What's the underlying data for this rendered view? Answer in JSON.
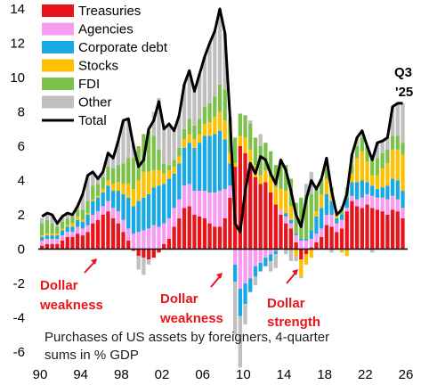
{
  "chart_data": {
    "type": "bar",
    "subtype": "stacked bar with line overlay",
    "unit": "% GDP",
    "x": {
      "start_year": 1990,
      "end_year": 2026,
      "tick_labels": [
        "90",
        "94",
        "98",
        "02",
        "06",
        "10",
        "14",
        "18",
        "22",
        "26"
      ]
    },
    "ylim": [
      -6,
      14
    ],
    "y_ticks": [
      "14",
      "12",
      "10",
      "8",
      "6",
      "4",
      "2",
      "0",
      "-2",
      "-4",
      "-6"
    ],
    "grid": false,
    "legend_position": "top-left",
    "series": [
      {
        "name": "Treasuries",
        "color": "#e8141b"
      },
      {
        "name": "Agencies",
        "color": "#f79cf0"
      },
      {
        "name": "Corporate debt",
        "color": "#17a9e3"
      },
      {
        "name": "Stocks",
        "color": "#ffc000"
      },
      {
        "name": "FDI",
        "color": "#7cc24a"
      },
      {
        "name": "Other",
        "color": "#bfbfbf"
      }
    ],
    "line_series": {
      "name": "Total",
      "color": "#000000",
      "points": [
        [
          1990.0,
          1.9
        ],
        [
          1990.5,
          2.1
        ],
        [
          1991.0,
          2.0
        ],
        [
          1991.5,
          1.5
        ],
        [
          1992.0,
          1.9
        ],
        [
          1992.5,
          2.1
        ],
        [
          1993.0,
          2.0
        ],
        [
          1993.5,
          2.5
        ],
        [
          1994.0,
          3.2
        ],
        [
          1994.5,
          4.3
        ],
        [
          1995.0,
          4.5
        ],
        [
          1995.5,
          4.1
        ],
        [
          1996.0,
          4.5
        ],
        [
          1996.5,
          5.6
        ],
        [
          1997.0,
          5.3
        ],
        [
          1997.5,
          6.3
        ],
        [
          1998.0,
          7.5
        ],
        [
          1998.5,
          7.6
        ],
        [
          1999.0,
          6.0
        ],
        [
          1999.5,
          4.8
        ],
        [
          2000.0,
          5.2
        ],
        [
          2000.5,
          7.0
        ],
        [
          2001.0,
          7.5
        ],
        [
          2001.5,
          8.6
        ],
        [
          2002.0,
          7.0
        ],
        [
          2002.5,
          7.3
        ],
        [
          2003.0,
          6.9
        ],
        [
          2003.5,
          7.8
        ],
        [
          2004.0,
          9.6
        ],
        [
          2004.5,
          10.4
        ],
        [
          2005.0,
          9.2
        ],
        [
          2005.5,
          10.2
        ],
        [
          2006.0,
          11.2
        ],
        [
          2006.5,
          12.0
        ],
        [
          2007.0,
          12.7
        ],
        [
          2007.5,
          14.0
        ],
        [
          2008.0,
          12.6
        ],
        [
          2008.5,
          7.7
        ],
        [
          2009.0,
          1.5
        ],
        [
          2009.5,
          1.0
        ],
        [
          2010.0,
          3.4
        ],
        [
          2010.5,
          5.0
        ],
        [
          2011.0,
          4.4
        ],
        [
          2011.5,
          5.4
        ],
        [
          2012.0,
          5.2
        ],
        [
          2012.5,
          4.4
        ],
        [
          2013.0,
          3.8
        ],
        [
          2013.5,
          5.2
        ],
        [
          2014.0,
          4.6
        ],
        [
          2014.5,
          3.4
        ],
        [
          2015.0,
          2.0
        ],
        [
          2015.5,
          1.3
        ],
        [
          2016.0,
          2.9
        ],
        [
          2016.5,
          4.0
        ],
        [
          2017.0,
          3.5
        ],
        [
          2017.5,
          4.1
        ],
        [
          2018.0,
          5.3
        ],
        [
          2018.5,
          3.4
        ],
        [
          2019.0,
          2.0
        ],
        [
          2019.5,
          2.3
        ],
        [
          2020.0,
          3.2
        ],
        [
          2020.5,
          5.5
        ],
        [
          2021.0,
          6.5
        ],
        [
          2021.5,
          6.9
        ],
        [
          2022.0,
          6.0
        ],
        [
          2022.5,
          5.2
        ],
        [
          2023.0,
          6.2
        ],
        [
          2023.5,
          6.3
        ],
        [
          2024.0,
          6.5
        ],
        [
          2024.5,
          8.3
        ],
        [
          2025.0,
          8.5
        ],
        [
          2025.5,
          8.5
        ]
      ]
    },
    "bars": [
      {
        "x": 1990.0,
        "values": [
          0.2,
          0.3,
          0.2,
          0.1,
          0.7,
          0.3
        ]
      },
      {
        "x": 1990.5,
        "values": [
          0.3,
          0.3,
          0.2,
          0.1,
          0.8,
          0.4
        ]
      },
      {
        "x": 1991.0,
        "values": [
          0.3,
          0.3,
          0.2,
          0.1,
          0.6,
          0.5
        ]
      },
      {
        "x": 1991.5,
        "values": [
          0.3,
          0.3,
          0.2,
          0.1,
          0.4,
          0.2
        ]
      },
      {
        "x": 1992.0,
        "values": [
          0.5,
          0.3,
          0.3,
          0.1,
          0.4,
          0.3
        ]
      },
      {
        "x": 1992.5,
        "values": [
          0.7,
          0.3,
          0.3,
          0.1,
          0.4,
          0.3
        ]
      },
      {
        "x": 1993.0,
        "values": [
          0.7,
          0.3,
          0.3,
          0.2,
          0.4,
          0.1
        ]
      },
      {
        "x": 1993.5,
        "values": [
          0.9,
          0.4,
          0.4,
          0.2,
          0.4,
          0.2
        ]
      },
      {
        "x": 1994.0,
        "values": [
          0.8,
          0.4,
          0.4,
          0.1,
          0.6,
          0.9
        ]
      },
      {
        "x": 1994.5,
        "values": [
          1.0,
          0.4,
          0.6,
          0.1,
          0.7,
          1.5
        ]
      },
      {
        "x": 1995.0,
        "values": [
          1.5,
          0.5,
          0.8,
          0.1,
          0.8,
          0.8
        ]
      },
      {
        "x": 1995.5,
        "values": [
          1.7,
          0.5,
          0.8,
          0.1,
          0.7,
          0.3
        ]
      },
      {
        "x": 1996.0,
        "values": [
          2.0,
          0.5,
          0.8,
          0.2,
          0.7,
          0.3
        ]
      },
      {
        "x": 1996.5,
        "values": [
          2.2,
          0.6,
          0.9,
          0.3,
          0.8,
          0.8
        ]
      },
      {
        "x": 1997.0,
        "values": [
          1.8,
          0.6,
          1.0,
          0.4,
          0.9,
          0.6
        ]
      },
      {
        "x": 1997.5,
        "values": [
          1.5,
          0.7,
          1.2,
          0.5,
          1.0,
          1.4
        ]
      },
      {
        "x": 1998.0,
        "values": [
          1.0,
          0.7,
          1.5,
          0.6,
          1.2,
          2.5
        ]
      },
      {
        "x": 1998.5,
        "values": [
          0.5,
          0.7,
          1.8,
          0.8,
          1.5,
          2.3
        ]
      },
      {
        "x": 1999.0,
        "values": [
          -0.1,
          0.9,
          1.6,
          1.0,
          1.8,
          0.8
        ]
      },
      {
        "x": 1999.5,
        "values": [
          -0.4,
          1.0,
          1.8,
          1.2,
          2.0,
          -0.8
        ]
      },
      {
        "x": 2000.0,
        "values": [
          -0.5,
          1.1,
          1.9,
          1.5,
          2.2,
          -1.0
        ]
      },
      {
        "x": 2000.5,
        "values": [
          -0.6,
          1.2,
          2.0,
          1.3,
          2.4,
          -0.3
        ]
      },
      {
        "x": 2001.0,
        "values": [
          -0.5,
          1.4,
          2.2,
          1.0,
          2.0,
          1.4
        ]
      },
      {
        "x": 2001.5,
        "values": [
          -0.2,
          1.3,
          2.4,
          0.9,
          1.2,
          3.0
        ]
      },
      {
        "x": 2002.0,
        "values": [
          0.3,
          1.2,
          2.3,
          0.6,
          0.6,
          2.0
        ]
      },
      {
        "x": 2002.5,
        "values": [
          0.6,
          1.2,
          2.3,
          0.5,
          0.3,
          2.4
        ]
      },
      {
        "x": 2003.0,
        "values": [
          1.3,
          1.1,
          2.0,
          0.4,
          0.4,
          1.7
        ]
      },
      {
        "x": 2003.5,
        "values": [
          1.8,
          1.1,
          2.1,
          0.4,
          0.5,
          1.9
        ]
      },
      {
        "x": 2004.0,
        "values": [
          2.4,
          1.3,
          2.2,
          0.5,
          0.6,
          2.6
        ]
      },
      {
        "x": 2004.5,
        "values": [
          2.5,
          1.3,
          2.4,
          0.5,
          0.9,
          2.8
        ]
      },
      {
        "x": 2005.0,
        "values": [
          2.0,
          1.4,
          2.5,
          0.5,
          0.8,
          2.0
        ]
      },
      {
        "x": 2005.5,
        "values": [
          1.9,
          1.5,
          2.8,
          0.5,
          0.9,
          2.6
        ]
      },
      {
        "x": 2006.0,
        "values": [
          1.8,
          1.6,
          3.2,
          0.7,
          1.0,
          2.9
        ]
      },
      {
        "x": 2006.5,
        "values": [
          1.5,
          1.8,
          3.3,
          0.8,
          1.1,
          3.5
        ]
      },
      {
        "x": 2007.0,
        "values": [
          1.3,
          2.0,
          3.4,
          1.0,
          1.2,
          3.8
        ]
      },
      {
        "x": 2007.5,
        "values": [
          1.3,
          2.1,
          3.5,
          1.1,
          1.6,
          4.4
        ]
      },
      {
        "x": 2008.0,
        "values": [
          1.8,
          1.7,
          2.9,
          1.1,
          1.8,
          3.3
        ]
      },
      {
        "x": 2008.5,
        "values": [
          3.0,
          0.7,
          1.3,
          0.6,
          1.9,
          0.2
        ]
      },
      {
        "x": 2009.0,
        "values": [
          4.8,
          -0.9,
          -1.0,
          0.2,
          1.5,
          -3.1
        ]
      },
      {
        "x": 2009.5,
        "values": [
          6.0,
          -2.3,
          -1.6,
          0.6,
          1.3,
          -3.0
        ]
      },
      {
        "x": 2010.0,
        "values": [
          5.6,
          -2.0,
          -1.2,
          0.9,
          1.3,
          -1.2
        ]
      },
      {
        "x": 2010.5,
        "values": [
          5.0,
          -1.7,
          -0.8,
          0.8,
          1.5,
          0.2
        ]
      },
      {
        "x": 2011.0,
        "values": [
          4.2,
          -1.0,
          -0.6,
          0.7,
          1.6,
          -0.5
        ]
      },
      {
        "x": 2011.5,
        "values": [
          3.8,
          -0.8,
          -0.5,
          0.5,
          1.7,
          0.7
        ]
      },
      {
        "x": 2012.0,
        "values": [
          3.9,
          -0.5,
          -0.5,
          0.7,
          1.6,
          0.0
        ]
      },
      {
        "x": 2012.5,
        "values": [
          3.3,
          -0.3,
          -0.4,
          0.9,
          1.5,
          -0.6
        ]
      },
      {
        "x": 2013.0,
        "values": [
          2.6,
          -0.1,
          -0.2,
          1.0,
          1.3,
          -0.8
        ]
      },
      {
        "x": 2013.5,
        "values": [
          2.0,
          0.3,
          0.0,
          1.2,
          1.4,
          0.3
        ]
      },
      {
        "x": 2014.0,
        "values": [
          1.5,
          0.4,
          0.2,
          1.3,
          1.5,
          -0.3
        ]
      },
      {
        "x": 2014.5,
        "values": [
          1.2,
          0.3,
          0.2,
          0.8,
          1.6,
          -0.7
        ]
      },
      {
        "x": 2015.0,
        "values": [
          0.4,
          0.4,
          0.1,
          -0.4,
          1.8,
          -0.3
        ]
      },
      {
        "x": 2015.5,
        "values": [
          -0.6,
          0.5,
          0.1,
          -1.0,
          2.4,
          -0.1
        ]
      },
      {
        "x": 2016.0,
        "values": [
          -0.3,
          0.5,
          0.1,
          -0.6,
          2.6,
          0.6
        ]
      },
      {
        "x": 2016.5,
        "values": [
          0.1,
          0.5,
          0.5,
          -0.5,
          2.1,
          1.3
        ]
      },
      {
        "x": 2017.0,
        "values": [
          0.4,
          0.5,
          1.0,
          0.3,
          1.3,
          0.0
        ]
      },
      {
        "x": 2017.5,
        "values": [
          0.7,
          0.5,
          1.2,
          0.8,
          0.9,
          0.0
        ]
      },
      {
        "x": 2018.0,
        "values": [
          1.4,
          0.6,
          1.2,
          0.9,
          0.6,
          0.6
        ]
      },
      {
        "x": 2018.5,
        "values": [
          1.3,
          0.7,
          0.8,
          0.6,
          0.2,
          -0.2
        ]
      },
      {
        "x": 2019.0,
        "values": [
          1.0,
          0.5,
          0.3,
          0.2,
          0.0,
          0.0
        ]
      },
      {
        "x": 2019.5,
        "values": [
          1.2,
          0.5,
          0.3,
          -0.2,
          0.2,
          0.3
        ]
      },
      {
        "x": 2020.0,
        "values": [
          2.2,
          0.2,
          0.6,
          -0.4,
          0.4,
          0.2
        ]
      },
      {
        "x": 2020.5,
        "values": [
          2.8,
          0.3,
          0.8,
          0.5,
          0.5,
          0.6
        ]
      },
      {
        "x": 2021.0,
        "values": [
          2.5,
          0.4,
          1.0,
          1.4,
          0.7,
          0.5
        ]
      },
      {
        "x": 2021.5,
        "values": [
          2.4,
          0.6,
          1.0,
          1.7,
          0.8,
          0.4
        ]
      },
      {
        "x": 2022.0,
        "values": [
          2.6,
          0.6,
          0.7,
          1.2,
          0.9,
          0.0
        ]
      },
      {
        "x": 2022.5,
        "values": [
          2.4,
          0.7,
          0.6,
          0.6,
          1.1,
          -0.2
        ]
      },
      {
        "x": 2023.0,
        "values": [
          2.3,
          0.7,
          0.5,
          0.8,
          1.0,
          0.9
        ]
      },
      {
        "x": 2023.5,
        "values": [
          2.2,
          0.8,
          0.6,
          1.1,
          0.9,
          0.7
        ]
      },
      {
        "x": 2024.0,
        "values": [
          2.0,
          0.9,
          0.8,
          1.3,
          0.8,
          0.7
        ]
      },
      {
        "x": 2024.5,
        "values": [
          2.3,
          0.8,
          1.0,
          1.7,
          0.8,
          1.7
        ]
      },
      {
        "x": 2025.0,
        "values": [
          2.2,
          0.7,
          1.1,
          1.8,
          0.8,
          1.9
        ]
      },
      {
        "x": 2025.5,
        "values": [
          1.8,
          0.6,
          1.0,
          2.1,
          0.7,
          2.3
        ]
      }
    ],
    "annotations": [
      {
        "lines": [
          "Dollar",
          "weakness"
        ],
        "color": "#e8141b",
        "arrow": true
      },
      {
        "lines": [
          "Dollar",
          "weakness"
        ],
        "color": "#e8141b",
        "arrow": true
      },
      {
        "lines": [
          "Dollar",
          "strength"
        ],
        "color": "#e8141b",
        "arrow": true
      },
      {
        "lines": [
          "Q3",
          "'25"
        ],
        "color": "#000000",
        "arrow": false
      }
    ],
    "footnote": [
      "Purchases of US assets by foreigners, 4-quarter",
      "sums in % GDP"
    ]
  }
}
